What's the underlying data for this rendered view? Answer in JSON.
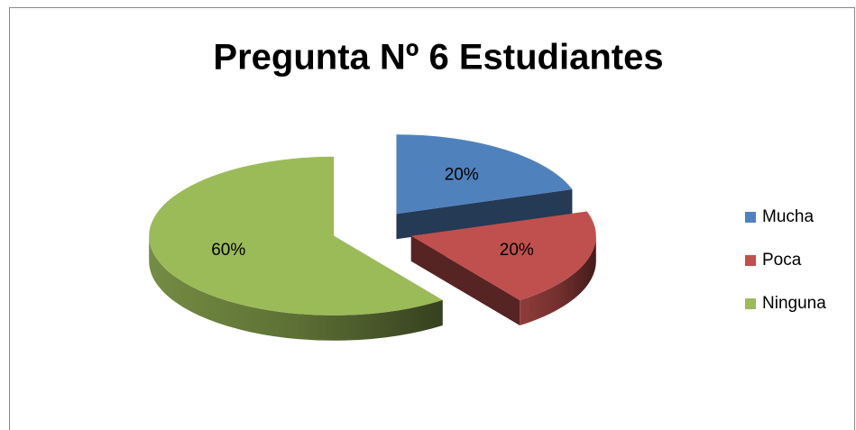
{
  "chart_data": {
    "type": "pie",
    "title": "Pregunta Nº 6 Estudiantes",
    "categories": [
      "Mucha",
      "Poca",
      "Ninguna"
    ],
    "values": [
      20,
      20,
      60
    ],
    "value_labels": [
      "20%",
      "20%",
      "60%"
    ],
    "colors": [
      "#4f81bd",
      "#c0504d",
      "#9bbb59"
    ],
    "legend": "right"
  }
}
